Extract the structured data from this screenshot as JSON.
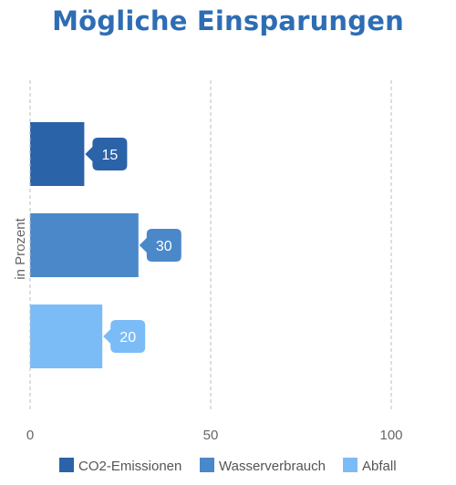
{
  "chart_data": {
    "type": "bar",
    "orientation": "horizontal",
    "title": "Mögliche Einsparungen",
    "ylabel": "in Prozent",
    "xlabel": "",
    "xlim": [
      0,
      100
    ],
    "xticks": [
      "0",
      "50",
      "100"
    ],
    "grid": "vertical-dashed",
    "legend_position": "bottom",
    "series": [
      {
        "name": "CO2-Emissionen",
        "value": 15,
        "color": "#2b63a8"
      },
      {
        "name": "Wasserverbrauch",
        "value": 30,
        "color": "#4a88c9"
      },
      {
        "name": "Abfall",
        "value": 20,
        "color": "#7bbcf7"
      }
    ]
  }
}
